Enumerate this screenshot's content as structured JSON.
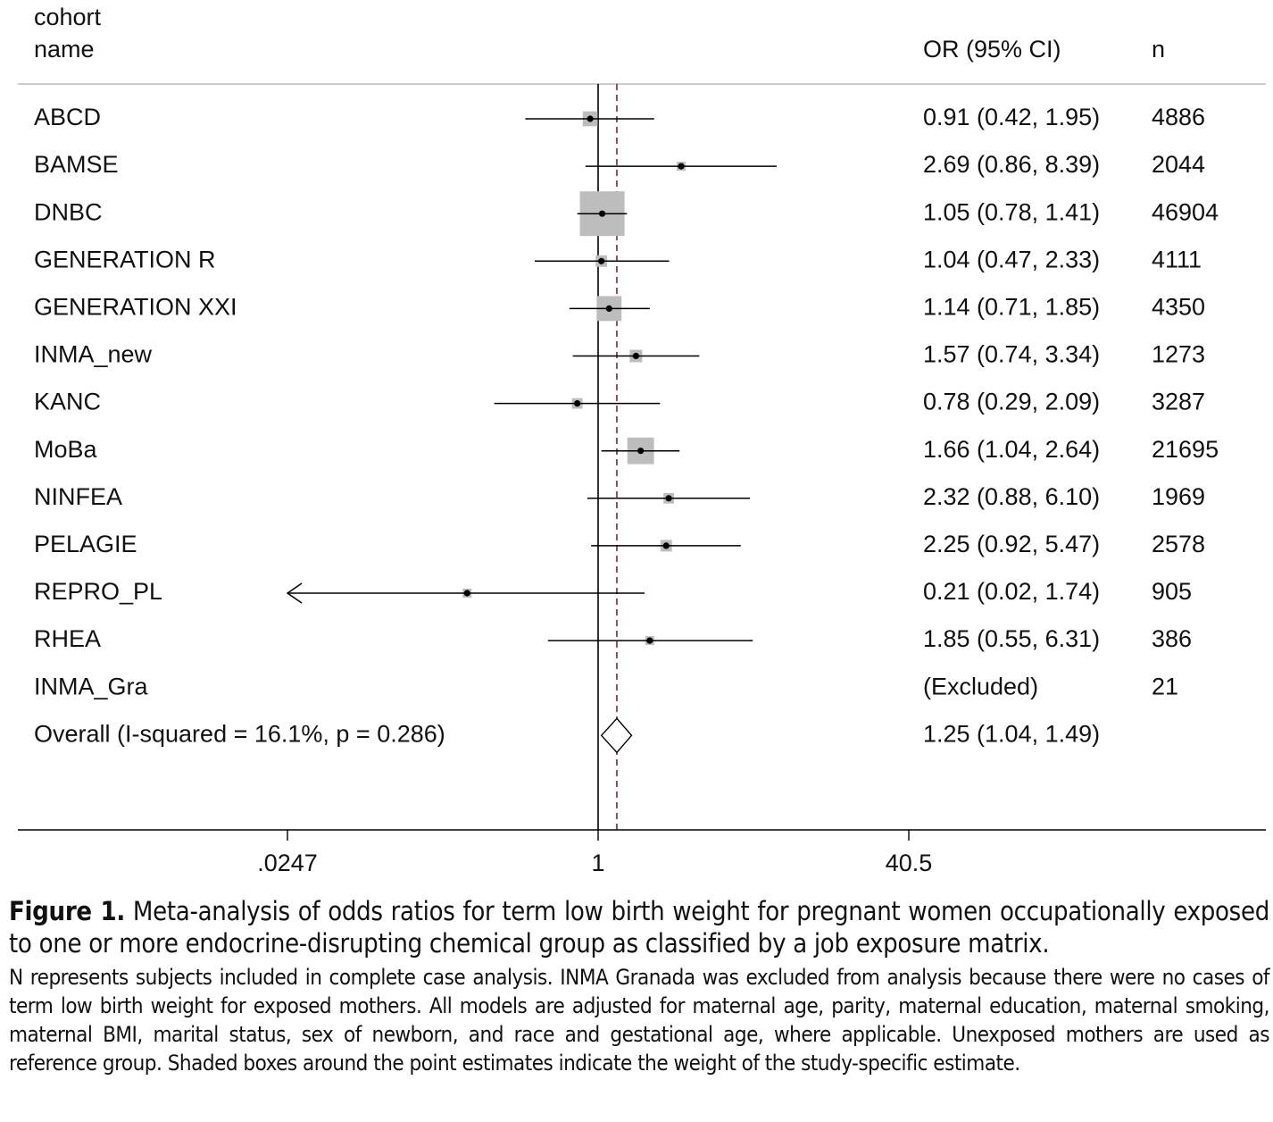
{
  "headers": {
    "cohort_line1": "cohort",
    "cohort_line2": "name",
    "or_ci": "OR (95% CI)",
    "n": "n"
  },
  "chart_data": {
    "type": "forest",
    "xscale": "log",
    "xticks": [
      0.0247,
      1,
      40.5
    ],
    "xtick_labels": [
      ".0247",
      "1",
      "40.5"
    ],
    "reference_line": 1,
    "overall_line": 1.25,
    "rows": [
      {
        "name": "ABCD",
        "or": 0.91,
        "lo": 0.42,
        "hi": 1.95,
        "label": "0.91 (0.42, 1.95)",
        "n": "4886"
      },
      {
        "name": "BAMSE",
        "or": 2.69,
        "lo": 0.86,
        "hi": 8.39,
        "label": "2.69 (0.86, 8.39)",
        "n": "2044"
      },
      {
        "name": "DNBC",
        "or": 1.05,
        "lo": 0.78,
        "hi": 1.41,
        "label": "1.05 (0.78, 1.41)",
        "n": "46904"
      },
      {
        "name": "GENERATION R",
        "or": 1.04,
        "lo": 0.47,
        "hi": 2.33,
        "label": "1.04 (0.47, 2.33)",
        "n": "4111"
      },
      {
        "name": "GENERATION XXI",
        "or": 1.14,
        "lo": 0.71,
        "hi": 1.85,
        "label": "1.14 (0.71, 1.85)",
        "n": "4350"
      },
      {
        "name": "INMA_new",
        "or": 1.57,
        "lo": 0.74,
        "hi": 3.34,
        "label": "1.57 (0.74, 3.34)",
        "n": "1273"
      },
      {
        "name": "KANC",
        "or": 0.78,
        "lo": 0.29,
        "hi": 2.09,
        "label": "0.78 (0.29, 2.09)",
        "n": "3287"
      },
      {
        "name": "MoBa",
        "or": 1.66,
        "lo": 1.04,
        "hi": 2.64,
        "label": "1.66 (1.04, 2.64)",
        "n": "21695"
      },
      {
        "name": "NINFEA",
        "or": 2.32,
        "lo": 0.88,
        "hi": 6.1,
        "label": "2.32 (0.88, 6.10)",
        "n": "1969"
      },
      {
        "name": "PELAGIE",
        "or": 2.25,
        "lo": 0.92,
        "hi": 5.47,
        "label": "2.25 (0.92, 5.47)",
        "n": "2578"
      },
      {
        "name": "REPRO_PL",
        "or": 0.21,
        "lo": 0.02,
        "hi": 1.74,
        "label": "0.21 (0.02, 1.74)",
        "n": "905",
        "truncated_low": true
      },
      {
        "name": "RHEA",
        "or": 1.85,
        "lo": 0.55,
        "hi": 6.31,
        "label": "1.85 (0.55, 6.31)",
        "n": "386"
      },
      {
        "name": "INMA_Gra",
        "or": null,
        "lo": null,
        "hi": null,
        "label": "(Excluded)",
        "n": "21"
      }
    ],
    "overall": {
      "name": "Overall  (I-squared = 16.1%, p = 0.286)",
      "or": 1.25,
      "lo": 1.04,
      "hi": 1.49,
      "label": "1.25 (1.04, 1.49)"
    },
    "weights": [
      0.05,
      0.015,
      0.45,
      0.03,
      0.14,
      0.035,
      0.025,
      0.16,
      0.025,
      0.03,
      0.004,
      0.012,
      0
    ],
    "colors": {
      "box": "#bdbdbd",
      "line": "#000000",
      "dash": "#7a2a3a",
      "header_rule": "#bbbbbb"
    }
  },
  "caption": {
    "label": "Figure 1.",
    "text": " Meta-analysis of odds ratios for term low birth weight for pregnant women occupationally exposed to one or more endocrine-disrupting chemical group as classified by a job exposure matrix.",
    "note": "N represents subjects included in complete case analysis. INMA Granada was excluded from analysis because there were no cases of term low birth weight for exposed mothers. All models are adjusted for maternal age, parity, maternal education, maternal smoking, maternal BMI, marital status, sex of newborn, and race and gestational age, where applicable. Unexposed mothers are used as reference group. Shaded boxes around the point estimates indicate the weight of the study-specific estimate."
  }
}
